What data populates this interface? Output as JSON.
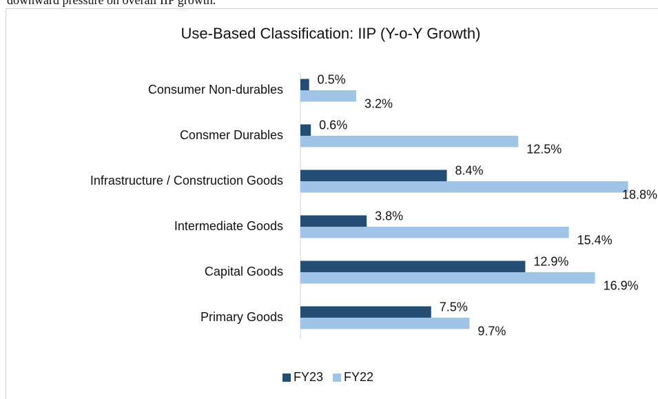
{
  "header_text": "downward pressure on overall IIP growth.",
  "chart_data": {
    "type": "hbar",
    "title": "Use-Based Classification: IIP (Y-o-Y Growth)",
    "categories": [
      "Consumer Non-durables",
      "Consmer Durables",
      "Infrastructure / Construction Goods",
      "Intermediate Goods",
      "Capital Goods",
      "Primary Goods"
    ],
    "series": [
      {
        "name": "FY23",
        "color": "#244d74",
        "values": [
          0.5,
          0.6,
          8.4,
          3.8,
          12.9,
          7.5
        ],
        "value_labels": [
          "0.5%",
          "0.6%",
          "8.4%",
          "3.8%",
          "12.9%",
          "7.5%"
        ]
      },
      {
        "name": "FY22",
        "color": "#a0c4e8",
        "values": [
          3.2,
          12.5,
          18.8,
          15.4,
          16.9,
          9.7
        ],
        "value_labels": [
          "3.2%",
          "12.5%",
          "18.8%",
          "15.4%",
          "16.9%",
          "9.7%"
        ]
      }
    ],
    "xlim": [
      0,
      20
    ],
    "legend": "bottom"
  }
}
